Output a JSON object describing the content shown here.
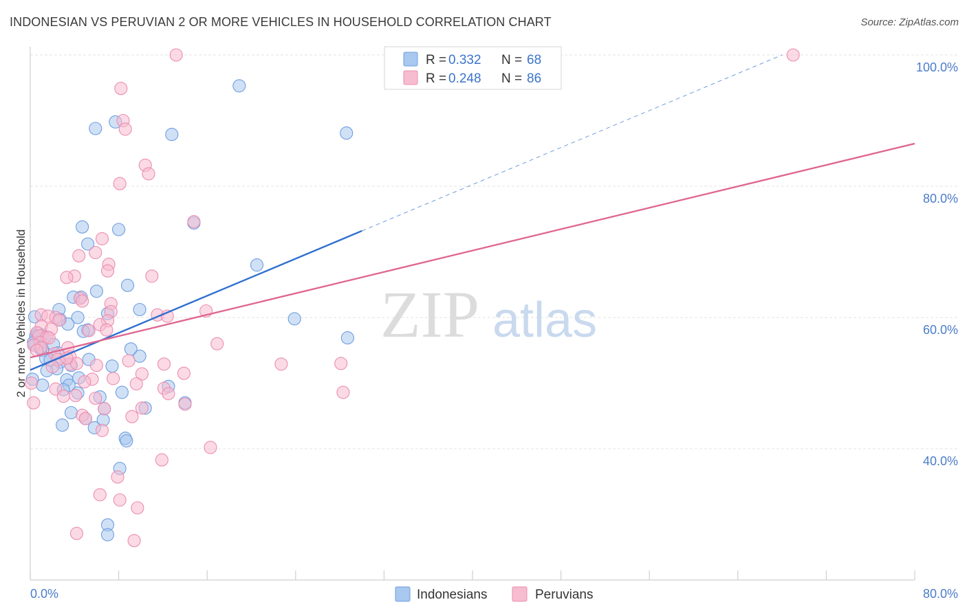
{
  "header": {
    "title": "INDONESIAN VS PERUVIAN 2 OR MORE VEHICLES IN HOUSEHOLD CORRELATION CHART",
    "source": "Source: ZipAtlas.com"
  },
  "watermark": {
    "zip": "ZIP",
    "atlas": "atlas"
  },
  "colors": {
    "indonesians_fill": "#a9c8ef",
    "indonesians_stroke": "#6d9de0",
    "indonesians_line": "#2f6fcf",
    "peruvians_fill": "#f7bcd0",
    "peruvians_stroke": "#eb8db0",
    "peruvians_line": "#e0668f",
    "tick_label": "#4a7cc9",
    "grid": "#e3e3e3"
  },
  "legend": {
    "rows": [
      {
        "r_label": "R =",
        "r_value": "0.332",
        "n_label": "N =",
        "n_value": "68"
      },
      {
        "r_label": "R =",
        "r_value": "0.248",
        "n_label": "N =",
        "n_value": "86"
      }
    ]
  },
  "chart_data": {
    "type": "scatter",
    "title": "INDONESIAN VS PERUVIAN 2 OR MORE VEHICLES IN HOUSEHOLD CORRELATION CHART",
    "xlabel": "",
    "ylabel": "2 or more Vehicles in Household",
    "xlim": [
      0,
      80
    ],
    "ylim": [
      20,
      100
    ],
    "x_ticks": [
      0,
      8,
      16,
      24,
      32,
      40,
      48,
      56,
      64,
      72,
      80
    ],
    "x_tick_labels": [
      "0.0%",
      "80.0%"
    ],
    "y_ticks": [
      40,
      60,
      80,
      100
    ],
    "y_tick_labels": [
      "40.0%",
      "60.0%",
      "80.0%",
      "100.0%"
    ],
    "grid": true,
    "legend_position": "top-center",
    "series": [
      {
        "name": "Indonesians",
        "r": 0.332,
        "n": 68,
        "trend": {
          "x0": 0,
          "y0": 52.0,
          "x1": 30,
          "y1": 73.2,
          "dashed_to_x": 68,
          "dashed_to_y": 100
        },
        "points": [
          [
            18.9,
            95.3
          ],
          [
            5.9,
            88.8
          ],
          [
            7.7,
            89.8
          ],
          [
            12.8,
            87.9
          ],
          [
            28.6,
            88.1
          ],
          [
            4.7,
            73.8
          ],
          [
            8.0,
            73.4
          ],
          [
            14.8,
            74.4
          ],
          [
            5.2,
            71.2
          ],
          [
            20.5,
            68.0
          ],
          [
            6.0,
            64.0
          ],
          [
            8.8,
            64.9
          ],
          [
            4.6,
            63.1
          ],
          [
            3.9,
            63.1
          ],
          [
            2.6,
            61.2
          ],
          [
            9.9,
            61.2
          ],
          [
            7.0,
            60.6
          ],
          [
            23.9,
            59.8
          ],
          [
            0.4,
            60.1
          ],
          [
            2.7,
            59.7
          ],
          [
            4.3,
            60.0
          ],
          [
            3.4,
            59.0
          ],
          [
            5.2,
            58.1
          ],
          [
            28.7,
            56.9
          ],
          [
            0.5,
            57.2
          ],
          [
            0.7,
            57.6
          ],
          [
            1.1,
            57.3
          ],
          [
            1.3,
            57.0
          ],
          [
            2.1,
            55.9
          ],
          [
            0.4,
            55.8
          ],
          [
            1.1,
            55.0
          ],
          [
            0.9,
            55.3
          ],
          [
            9.9,
            54.1
          ],
          [
            1.4,
            53.8
          ],
          [
            2.7,
            53.2
          ],
          [
            5.3,
            53.6
          ],
          [
            3.7,
            52.7
          ],
          [
            7.4,
            52.6
          ],
          [
            2.4,
            52.2
          ],
          [
            1.5,
            51.9
          ],
          [
            0.2,
            50.6
          ],
          [
            3.3,
            50.5
          ],
          [
            4.4,
            50.8
          ],
          [
            1.1,
            49.7
          ],
          [
            3.5,
            49.7
          ],
          [
            12.5,
            49.5
          ],
          [
            4.3,
            48.5
          ],
          [
            8.3,
            48.6
          ],
          [
            6.3,
            47.9
          ],
          [
            14.0,
            47.0
          ],
          [
            10.4,
            46.2
          ],
          [
            6.7,
            46.1
          ],
          [
            3.7,
            45.5
          ],
          [
            5.0,
            44.6
          ],
          [
            6.6,
            44.4
          ],
          [
            2.9,
            43.6
          ],
          [
            5.8,
            43.2
          ],
          [
            8.6,
            41.6
          ],
          [
            8.7,
            41.2
          ],
          [
            8.1,
            37.0
          ],
          [
            7.0,
            28.4
          ],
          [
            7.0,
            26.9
          ],
          [
            0.3,
            56.2
          ],
          [
            1.8,
            53.5
          ],
          [
            2.5,
            54.6
          ],
          [
            4.8,
            57.9
          ],
          [
            9.1,
            55.2
          ],
          [
            3.0,
            49.0
          ]
        ]
      },
      {
        "name": "Peruvians",
        "r": 0.248,
        "n": 86,
        "trend": {
          "x0": 0,
          "y0": 53.9,
          "x1": 80,
          "y1": 86.5
        },
        "points": [
          [
            13.2,
            100.0
          ],
          [
            69.0,
            100.0
          ],
          [
            8.2,
            94.9
          ],
          [
            8.4,
            90.0
          ],
          [
            8.6,
            88.7
          ],
          [
            10.4,
            83.2
          ],
          [
            10.7,
            81.9
          ],
          [
            8.1,
            80.4
          ],
          [
            14.8,
            74.6
          ],
          [
            6.5,
            72.0
          ],
          [
            5.9,
            69.9
          ],
          [
            4.4,
            69.4
          ],
          [
            7.1,
            68.1
          ],
          [
            7.0,
            67.1
          ],
          [
            4.0,
            66.3
          ],
          [
            3.3,
            66.1
          ],
          [
            11.0,
            66.3
          ],
          [
            4.5,
            62.9
          ],
          [
            7.3,
            62.1
          ],
          [
            4.7,
            62.5
          ],
          [
            15.9,
            61.0
          ],
          [
            7.3,
            60.9
          ],
          [
            11.5,
            60.4
          ],
          [
            1.0,
            60.4
          ],
          [
            1.6,
            60.2
          ],
          [
            2.3,
            60.0
          ],
          [
            2.6,
            59.6
          ],
          [
            7.0,
            59.5
          ],
          [
            6.3,
            58.9
          ],
          [
            1.0,
            58.7
          ],
          [
            1.9,
            58.2
          ],
          [
            5.3,
            58.0
          ],
          [
            0.6,
            57.7
          ],
          [
            0.8,
            57.2
          ],
          [
            1.5,
            57.0
          ],
          [
            0.9,
            56.2
          ],
          [
            16.9,
            56.0
          ],
          [
            0.3,
            55.8
          ],
          [
            1.0,
            55.4
          ],
          [
            0.6,
            55.0
          ],
          [
            3.4,
            55.4
          ],
          [
            2.2,
            54.5
          ],
          [
            3.6,
            54.0
          ],
          [
            2.5,
            53.6
          ],
          [
            8.9,
            53.4
          ],
          [
            12.1,
            52.9
          ],
          [
            22.7,
            52.9
          ],
          [
            28.1,
            53.0
          ],
          [
            2.0,
            52.5
          ],
          [
            3.6,
            52.9
          ],
          [
            6.0,
            52.7
          ],
          [
            4.2,
            53.0
          ],
          [
            13.9,
            51.5
          ],
          [
            10.1,
            51.4
          ],
          [
            5.6,
            50.6
          ],
          [
            7.5,
            50.7
          ],
          [
            4.9,
            50.2
          ],
          [
            0.1,
            50.0
          ],
          [
            9.6,
            49.9
          ],
          [
            2.3,
            49.1
          ],
          [
            12.1,
            49.2
          ],
          [
            12.5,
            48.4
          ],
          [
            28.3,
            48.6
          ],
          [
            3.0,
            48.0
          ],
          [
            4.1,
            48.1
          ],
          [
            5.9,
            47.7
          ],
          [
            0.3,
            47.0
          ],
          [
            14.0,
            46.8
          ],
          [
            10.1,
            46.2
          ],
          [
            6.7,
            46.1
          ],
          [
            4.7,
            45.1
          ],
          [
            9.2,
            44.9
          ],
          [
            5.0,
            44.6
          ],
          [
            6.5,
            42.8
          ],
          [
            16.3,
            40.2
          ],
          [
            11.9,
            38.3
          ],
          [
            7.9,
            35.7
          ],
          [
            6.3,
            33.0
          ],
          [
            8.1,
            32.2
          ],
          [
            9.7,
            31.0
          ],
          [
            4.2,
            27.1
          ],
          [
            9.4,
            26.0
          ],
          [
            12.4,
            60.2
          ],
          [
            3.3,
            53.8
          ],
          [
            1.7,
            56.9
          ],
          [
            6.9,
            58.1
          ]
        ]
      }
    ]
  },
  "bottom_legend": {
    "items": [
      {
        "label": "Indonesians"
      },
      {
        "label": "Peruvians"
      }
    ]
  }
}
